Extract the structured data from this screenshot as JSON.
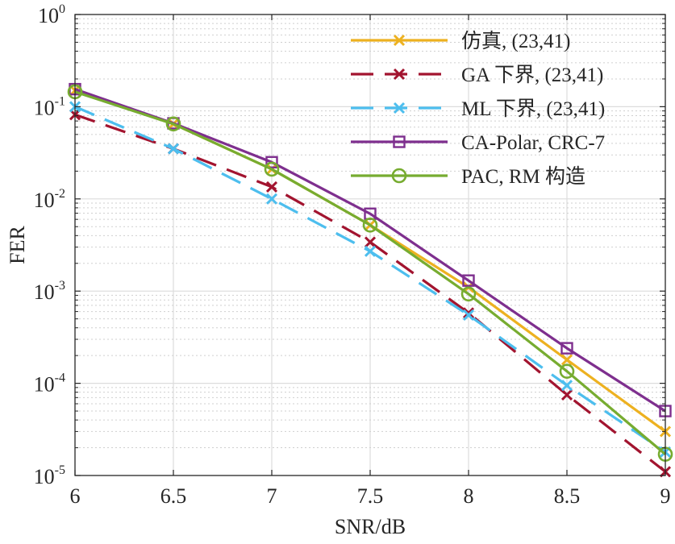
{
  "chart_data": {
    "type": "line",
    "xlabel": "SNR/dB",
    "ylabel": "FER",
    "xlim": [
      6,
      9
    ],
    "ylim": [
      1e-05,
      1
    ],
    "yscale": "log",
    "grid": true,
    "legend_position": "top-right",
    "x": [
      6,
      6.5,
      7,
      7.5,
      8,
      8.5,
      9
    ],
    "x_tick_labels": [
      "6",
      "6.5",
      "7",
      "7.5",
      "8",
      "8.5",
      "9"
    ],
    "y_tick_labels": [
      {
        "base": "10",
        "exp": "0"
      },
      {
        "base": "10",
        "exp": "-1"
      },
      {
        "base": "10",
        "exp": "-2"
      },
      {
        "base": "10",
        "exp": "-3"
      },
      {
        "base": "10",
        "exp": "-4"
      },
      {
        "base": "10",
        "exp": "-5"
      }
    ],
    "series": [
      {
        "name": "仿真, (23,41)",
        "color": "#EDB120",
        "dash": "solid",
        "marker": "x",
        "values": [
          0.15,
          0.065,
          0.021,
          0.0052,
          0.0011,
          0.00018,
          3e-05
        ]
      },
      {
        "name": "GA 下界, (23,41)",
        "color": "#A2142F",
        "dash": "dashed",
        "marker": "x",
        "values": [
          0.082,
          0.035,
          0.0135,
          0.0034,
          0.00058,
          7.5e-05,
          1.1e-05
        ]
      },
      {
        "name": "ML 下界, (23,41)",
        "color": "#4DBEEE",
        "dash": "dashed",
        "marker": "x",
        "values": [
          0.1,
          0.035,
          0.01,
          0.0027,
          0.00055,
          9.5e-05,
          1.8e-05
        ]
      },
      {
        "name": "CA-Polar, CRC-7",
        "color": "#7E2F8E",
        "dash": "solid",
        "marker": "square",
        "values": [
          0.155,
          0.066,
          0.025,
          0.0069,
          0.0013,
          0.00024,
          5e-05
        ]
      },
      {
        "name": "PAC, RM 构造",
        "color": "#77AC30",
        "dash": "solid",
        "marker": "circle",
        "values": [
          0.145,
          0.065,
          0.021,
          0.0052,
          0.00093,
          0.000135,
          1.7e-05
        ]
      }
    ]
  }
}
